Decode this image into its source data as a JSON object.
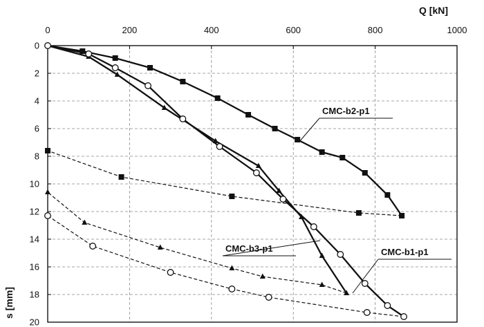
{
  "chart_data": {
    "type": "line",
    "xlabel": "Q [kN]",
    "ylabel": "s [mm]",
    "xlim": [
      0,
      1000
    ],
    "ylim": [
      0,
      20
    ],
    "y_inverted": true,
    "x_ticks": [
      "0",
      "200",
      "400",
      "600",
      "800",
      "1000"
    ],
    "y_ticks": [
      "0",
      "2",
      "4",
      "6",
      "8",
      "10",
      "12",
      "14",
      "16",
      "18",
      "20"
    ],
    "grid": true,
    "series": [
      {
        "name": "CMC-b2-p1",
        "marker": "square",
        "loading": {
          "x": [
            0,
            85,
            165,
            250,
            330,
            415,
            490,
            555,
            610,
            670,
            720,
            775,
            830,
            865
          ],
          "y": [
            0,
            0.4,
            0.9,
            1.6,
            2.6,
            3.8,
            5.0,
            6.0,
            6.8,
            7.7,
            8.1,
            9.2,
            10.8,
            12.3
          ]
        },
        "unloading": {
          "x": [
            865,
            760,
            450,
            180,
            0
          ],
          "y": [
            12.3,
            12.1,
            10.9,
            9.5,
            7.6
          ]
        }
      },
      {
        "name": "CMC-b3-p1",
        "marker": "triangle",
        "loading": {
          "x": [
            0,
            100,
            170,
            285,
            410,
            515,
            565,
            620,
            670,
            730
          ],
          "y": [
            0,
            0.8,
            2.1,
            4.5,
            6.9,
            8.7,
            10.5,
            12.4,
            15.2,
            17.9
          ]
        },
        "unloading": {
          "x": [
            730,
            670,
            525,
            450,
            275,
            90,
            0
          ],
          "y": [
            17.9,
            17.3,
            16.7,
            16.1,
            14.6,
            12.8,
            10.6
          ]
        }
      },
      {
        "name": "CMC-b1-p1",
        "marker": "circle",
        "loading": {
          "x": [
            0,
            100,
            165,
            245,
            330,
            420,
            510,
            575,
            650,
            715,
            775,
            830,
            870
          ],
          "y": [
            0,
            0.6,
            1.6,
            2.9,
            5.3,
            7.3,
            9.2,
            11.1,
            13.1,
            15.1,
            17.2,
            18.8,
            19.6
          ]
        },
        "unloading": {
          "x": [
            870,
            780,
            540,
            450,
            300,
            110,
            0
          ],
          "y": [
            19.6,
            19.3,
            18.2,
            17.6,
            16.4,
            14.5,
            12.3
          ]
        }
      }
    ]
  }
}
